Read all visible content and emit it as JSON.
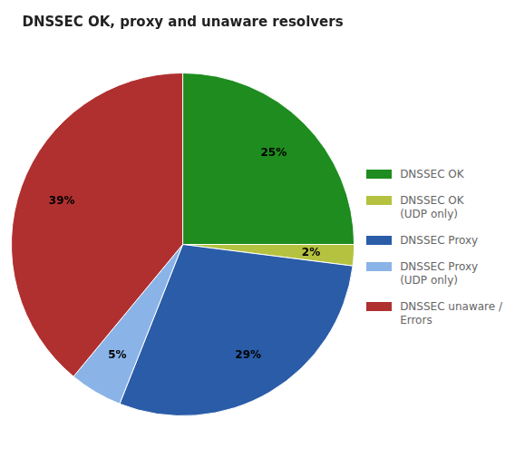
{
  "chart_data": {
    "type": "pie",
    "title": "DNSSEC OK, proxy and unaware resolvers",
    "categories": [
      "DNSSEC OK",
      "DNSSEC OK\n(UDP only)",
      "DNSSEC Proxy",
      "DNSSEC Proxy\n(UDP only)",
      "DNSSEC unaware /\nErrors"
    ],
    "values": [
      25,
      2,
      29,
      5,
      39
    ],
    "value_labels": [
      "25%",
      "2%",
      "29%",
      "5%",
      "39%"
    ],
    "colors": [
      "#1e8c1e",
      "#b5c240",
      "#2a5ca8",
      "#8ab4e8",
      "#b03030"
    ],
    "data_labels": true,
    "legend": "right"
  }
}
